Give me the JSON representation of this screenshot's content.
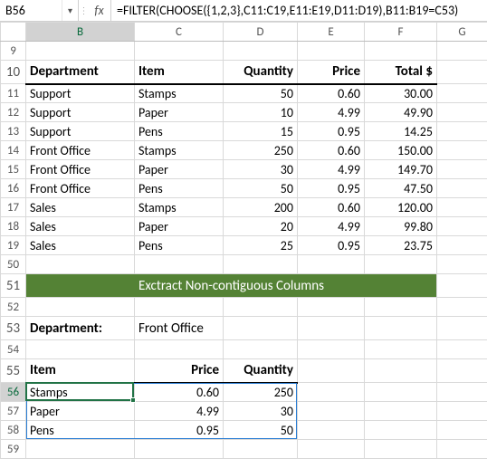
{
  "formula_bar": {
    "cell_ref": "B56",
    "fx_label": "fx",
    "formula": "=FILTER(CHOOSE({1,2,3},C11:C19,E11:E19,D11:D19),B11:B19=C53)"
  },
  "columns": [
    "B",
    "C",
    "D",
    "E",
    "F",
    "G"
  ],
  "rows": [
    "9",
    "10",
    "11",
    "12",
    "13",
    "14",
    "15",
    "16",
    "17",
    "18",
    "19",
    "50",
    "51",
    "52",
    "53",
    "54",
    "55",
    "56",
    "57",
    "58",
    "59"
  ],
  "table1": {
    "headers": {
      "dept": "Department",
      "item": "Item",
      "qty": "Quantity",
      "price": "Price",
      "total": "Total  $"
    },
    "rows": [
      {
        "dept": "Support",
        "item": "Stamps",
        "qty": "50",
        "price": "0.60",
        "total": "30.00"
      },
      {
        "dept": "Support",
        "item": "Paper",
        "qty": "10",
        "price": "4.99",
        "total": "49.90"
      },
      {
        "dept": "Support",
        "item": "Pens",
        "qty": "15",
        "price": "0.95",
        "total": "14.25"
      },
      {
        "dept": "Front Office",
        "item": "Stamps",
        "qty": "250",
        "price": "0.60",
        "total": "150.00"
      },
      {
        "dept": "Front Office",
        "item": "Paper",
        "qty": "30",
        "price": "4.99",
        "total": "149.70"
      },
      {
        "dept": "Front Office",
        "item": "Pens",
        "qty": "50",
        "price": "0.95",
        "total": "47.50"
      },
      {
        "dept": "Sales",
        "item": "Stamps",
        "qty": "200",
        "price": "0.60",
        "total": "120.00"
      },
      {
        "dept": "Sales",
        "item": "Paper",
        "qty": "20",
        "price": "4.99",
        "total": "99.80"
      },
      {
        "dept": "Sales",
        "item": "Pens",
        "qty": "25",
        "price": "0.95",
        "total": "23.75"
      }
    ]
  },
  "banner": {
    "text": "Exctract Non-contiguous Columns",
    "bg": "#548235",
    "fg": "#ffffff"
  },
  "filter": {
    "dept_label": "Department:",
    "dept_value": "Front Office",
    "headers": {
      "item": "Item",
      "price": "Price",
      "qty": "Quantity"
    },
    "rows": [
      {
        "item": "Stamps",
        "price": "0.60",
        "qty": "250"
      },
      {
        "item": "Paper",
        "price": "4.99",
        "qty": "30"
      },
      {
        "item": "Pens",
        "price": "0.95",
        "qty": "50"
      }
    ]
  },
  "style": {
    "grid_color": "#d9d9d9",
    "header_grid_color": "#bdbdbd",
    "active_border": "#217346",
    "spill_border": "#2a7dd4",
    "colhdr_sel_bg": "#d2d2d2"
  }
}
